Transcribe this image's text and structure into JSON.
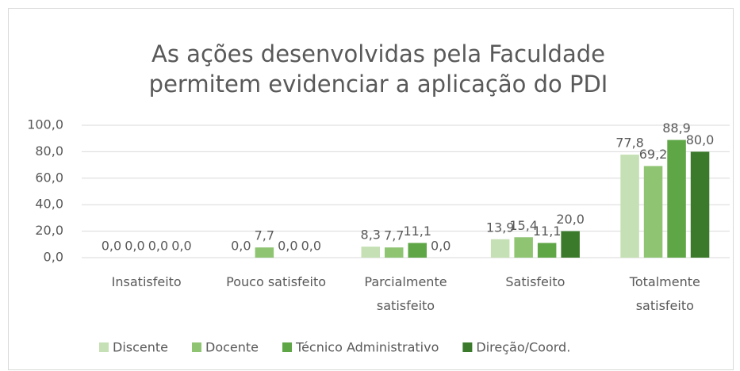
{
  "chart_data": {
    "type": "bar",
    "title": "As ações desenvolvidas pela Faculdade\npermitem evidenciar a aplicação do PDI",
    "categories": [
      "Insatisfeito",
      "Pouco satisfeito",
      "Parcialmente\nsatisfeito",
      "Satisfeito",
      "Totalmente\nsatisfeito"
    ],
    "series": [
      {
        "name": "Discente",
        "color": "#c5e0b4",
        "values": [
          0.0,
          0.0,
          8.3,
          13.9,
          77.8
        ],
        "value_labels": [
          "0,0",
          "0,0",
          "8,3",
          "13,9",
          "77,8"
        ]
      },
      {
        "name": "Docente",
        "color": "#8fc472",
        "values": [
          0.0,
          7.7,
          7.7,
          15.4,
          69.2
        ],
        "value_labels": [
          "0,0",
          "7,7",
          "7,7",
          "15,4",
          "69,2"
        ]
      },
      {
        "name": "Técnico Administrativo",
        "color": "#5fa646",
        "values": [
          0.0,
          0.0,
          11.1,
          11.1,
          88.9
        ],
        "value_labels": [
          "0,0",
          "0,0",
          "11,1",
          "11,1",
          "88,9"
        ]
      },
      {
        "name": "Direção/Coord.",
        "color": "#3b7a2a",
        "values": [
          0.0,
          0.0,
          0.0,
          20.0,
          80.0
        ],
        "value_labels": [
          "0,0",
          "0,0",
          "0,0",
          "20,0",
          "80,0"
        ]
      }
    ],
    "ylim": [
      0,
      100
    ],
    "yticks": [
      {
        "value": 0,
        "label": "0,0"
      },
      {
        "value": 20,
        "label": "20,0"
      },
      {
        "value": 40,
        "label": "40,0"
      },
      {
        "value": 60,
        "label": "60,0"
      },
      {
        "value": 80,
        "label": "80,0"
      },
      {
        "value": 100,
        "label": "100,0"
      }
    ],
    "grid": true,
    "legend": "bottom"
  }
}
